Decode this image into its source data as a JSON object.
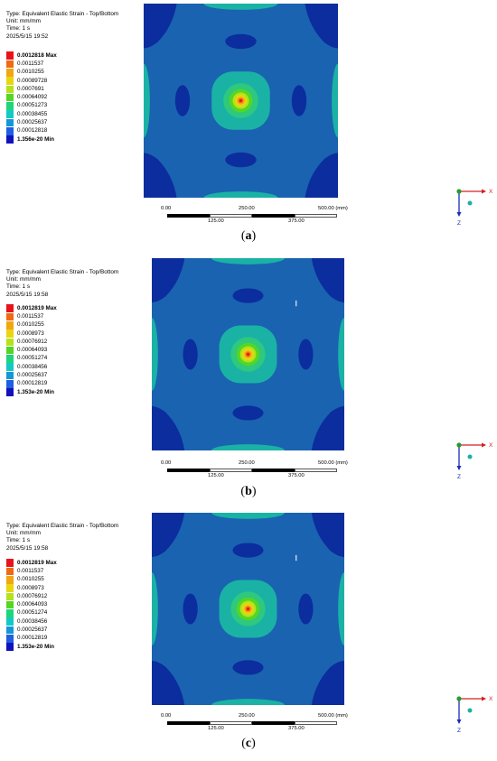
{
  "figures": [
    {
      "info": {
        "type_line": "Type: Equivalent Elastic Strain - Top/Bottom",
        "unit_line": "Unit: mm/mm",
        "time_line": "Time: 1 s",
        "date_line": "2025/5/15 19:52"
      },
      "legend": [
        "0.0012818 Max",
        "0.0011537",
        "0.0010255",
        "0.00089728",
        "0.0007691",
        "0.00064092",
        "0.00051273",
        "0.00038455",
        "0.00025637",
        "0.00012818",
        "1.356e-20 Min"
      ],
      "scale_top": [
        "0.00",
        "250.00",
        "500.00 (mm)"
      ],
      "scale_bottom": [
        "125.00",
        "375.00"
      ],
      "axes": {
        "x": "X",
        "z": "Z"
      },
      "caption": {
        "open": "(",
        "letter": "a",
        "close": ")"
      }
    },
    {
      "info": {
        "type_line": "Type: Equivalent Elastic Strain - Top/Bottom",
        "unit_line": "Unit: mm/mm",
        "time_line": "Time: 1 s",
        "date_line": "2025/5/15 19:58"
      },
      "legend": [
        "0.0012819 Max",
        "0.0011537",
        "0.0010255",
        "0.0008973",
        "0.00076912",
        "0.00064093",
        "0.00051274",
        "0.00038456",
        "0.00025637",
        "0.00012819",
        "1.353e-20 Min"
      ],
      "scale_top": [
        "0.00",
        "250.00",
        "500.00 (mm)"
      ],
      "scale_bottom": [
        "125.00",
        "375.00"
      ],
      "axes": {
        "x": "X",
        "z": "Z"
      },
      "caption": {
        "open": "(",
        "letter": "b",
        "close": ")"
      }
    },
    {
      "info": {
        "type_line": "Type: Equivalent Elastic Strain - Top/Bottom",
        "unit_line": "Unit: mm/mm",
        "time_line": "Time: 1 s",
        "date_line": "2025/5/15 19:58"
      },
      "legend": [
        "0.0012819 Max",
        "0.0011537",
        "0.0010255",
        "0.0008973",
        "0.00076912",
        "0.00064093",
        "0.00051274",
        "0.00038456",
        "0.00025637",
        "0.00012819",
        "1.353e-20 Min"
      ],
      "scale_top": [
        "0.00",
        "250.00",
        "500.00 (mm)"
      ],
      "scale_bottom": [
        "125.00",
        "375.00"
      ],
      "axes": {
        "x": "X",
        "z": "Z"
      },
      "caption": {
        "open": "(",
        "letter": "c",
        "close": ")"
      }
    }
  ],
  "colors": {
    "legend": [
      "#e8141c",
      "#f06a12",
      "#f2a612",
      "#e8d613",
      "#b5e21b",
      "#54d624",
      "#1dd67a",
      "#14c9c4",
      "#1497d8",
      "#1f5fe0",
      "#1212bd"
    ],
    "field_bg": "#1a63b0",
    "blue_dark": "#0b2d9e",
    "teal": "#1ab2a5",
    "green_mid": "#2ec87e"
  }
}
